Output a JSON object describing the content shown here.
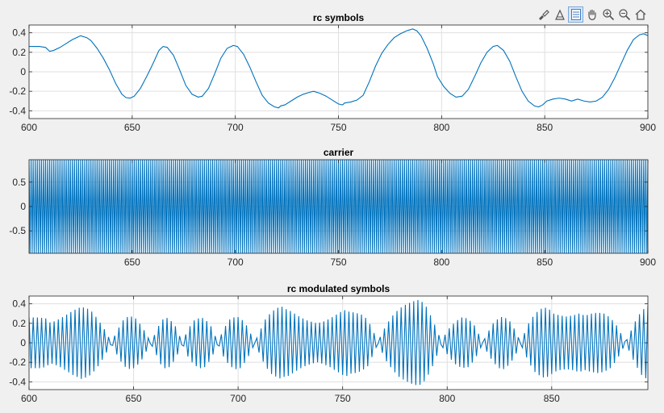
{
  "figure": {
    "background": "#f0f0f0",
    "line_color": "#0072bd",
    "grid_color": "#dfdfdf",
    "axis_color": "#262626"
  },
  "toolbar": {
    "icons": [
      "brush-icon",
      "data-tips-icon",
      "legend-icon",
      "pan-icon",
      "zoom-in-icon",
      "zoom-out-icon",
      "home-icon"
    ]
  },
  "chart_data": [
    {
      "type": "line",
      "title": "rc symbols",
      "xlim": [
        600,
        900
      ],
      "ylim": [
        -0.48,
        0.48
      ],
      "xticks": [
        600,
        650,
        700,
        750,
        800,
        850,
        900
      ],
      "yticks": [
        -0.4,
        -0.2,
        0,
        0.2,
        0.4
      ],
      "grid": true,
      "series": [
        {
          "points": [
            [
              600,
              0.26
            ],
            [
              602,
              0.26
            ],
            [
              605,
              0.26
            ],
            [
              608,
              0.25
            ],
            [
              610,
              0.21
            ],
            [
              612,
              0.22
            ],
            [
              615,
              0.25
            ],
            [
              618,
              0.29
            ],
            [
              621,
              0.33
            ],
            [
              624,
              0.36
            ],
            [
              625,
              0.37
            ],
            [
              628,
              0.35
            ],
            [
              630,
              0.32
            ],
            [
              633,
              0.24
            ],
            [
              636,
              0.14
            ],
            [
              639,
              0.02
            ],
            [
              642,
              -0.12
            ],
            [
              645,
              -0.23
            ],
            [
              647,
              -0.265
            ],
            [
              649,
              -0.27
            ],
            [
              651,
              -0.25
            ],
            [
              654,
              -0.17
            ],
            [
              657,
              -0.05
            ],
            [
              660,
              0.08
            ],
            [
              663,
              0.22
            ],
            [
              665,
              0.26
            ],
            [
              667,
              0.25
            ],
            [
              670,
              0.17
            ],
            [
              673,
              0.02
            ],
            [
              676,
              -0.14
            ],
            [
              679,
              -0.23
            ],
            [
              682,
              -0.26
            ],
            [
              684,
              -0.25
            ],
            [
              687,
              -0.17
            ],
            [
              690,
              -0.02
            ],
            [
              693,
              0.14
            ],
            [
              696,
              0.24
            ],
            [
              699,
              0.27
            ],
            [
              701,
              0.26
            ],
            [
              704,
              0.18
            ],
            [
              707,
              0.05
            ],
            [
              710,
              -0.1
            ],
            [
              713,
              -0.24
            ],
            [
              716,
              -0.32
            ],
            [
              719,
              -0.36
            ],
            [
              721,
              -0.37
            ],
            [
              722,
              -0.35
            ],
            [
              724,
              -0.34
            ],
            [
              727,
              -0.3
            ],
            [
              730,
              -0.26
            ],
            [
              733,
              -0.23
            ],
            [
              736,
              -0.21
            ],
            [
              738,
              -0.2
            ],
            [
              741,
              -0.22
            ],
            [
              744,
              -0.25
            ],
            [
              747,
              -0.29
            ],
            [
              750,
              -0.33
            ],
            [
              752,
              -0.34
            ],
            [
              753,
              -0.32
            ],
            [
              756,
              -0.31
            ],
            [
              759,
              -0.29
            ],
            [
              762,
              -0.24
            ],
            [
              765,
              -0.1
            ],
            [
              768,
              0.06
            ],
            [
              771,
              0.19
            ],
            [
              774,
              0.28
            ],
            [
              777,
              0.35
            ],
            [
              780,
              0.39
            ],
            [
              783,
              0.42
            ],
            [
              786,
              0.44
            ],
            [
              788,
              0.42
            ],
            [
              790,
              0.37
            ],
            [
              793,
              0.24
            ],
            [
              796,
              0.08
            ],
            [
              798,
              -0.05
            ],
            [
              801,
              -0.15
            ],
            [
              804,
              -0.22
            ],
            [
              807,
              -0.26
            ],
            [
              810,
              -0.25
            ],
            [
              813,
              -0.18
            ],
            [
              816,
              -0.05
            ],
            [
              819,
              0.09
            ],
            [
              822,
              0.2
            ],
            [
              825,
              0.26
            ],
            [
              827,
              0.27
            ],
            [
              830,
              0.22
            ],
            [
              833,
              0.11
            ],
            [
              836,
              -0.05
            ],
            [
              839,
              -0.2
            ],
            [
              842,
              -0.3
            ],
            [
              845,
              -0.35
            ],
            [
              847,
              -0.36
            ],
            [
              849,
              -0.34
            ],
            [
              851,
              -0.3
            ],
            [
              854,
              -0.28
            ],
            [
              857,
              -0.27
            ],
            [
              860,
              -0.28
            ],
            [
              863,
              -0.3
            ],
            [
              866,
              -0.28
            ],
            [
              869,
              -0.3
            ],
            [
              872,
              -0.31
            ],
            [
              875,
              -0.3
            ],
            [
              878,
              -0.26
            ],
            [
              881,
              -0.18
            ],
            [
              884,
              -0.06
            ],
            [
              887,
              0.08
            ],
            [
              890,
              0.22
            ],
            [
              893,
              0.33
            ],
            [
              896,
              0.38
            ],
            [
              898,
              0.39
            ],
            [
              900,
              0.37
            ]
          ]
        }
      ]
    },
    {
      "type": "line",
      "title": "carrier",
      "xlim": [
        600,
        900
      ],
      "ylim": [
        -0.96,
        0.96
      ],
      "xticks": [
        650,
        700,
        750,
        800,
        850,
        900
      ],
      "yticks": [
        -0.5,
        0,
        0.5
      ],
      "grid": true,
      "series": [
        {
          "function": "cos",
          "amplitude": 1,
          "samples_per_period": 4,
          "start": 600,
          "end": 900
        }
      ]
    },
    {
      "type": "line",
      "title": "rc modulated symbols",
      "xlim": [
        600,
        896
      ],
      "ylim": [
        -0.48,
        0.48
      ],
      "xticks": [
        600,
        650,
        700,
        750,
        800,
        850
      ],
      "yticks": [
        -0.4,
        -0.2,
        0,
        0.2,
        0.4
      ],
      "grid": true,
      "series": [
        {
          "derived": "envelope_times_alternating_sign",
          "envelope_from_chart": 0,
          "start": 600,
          "end": 896
        }
      ]
    }
  ]
}
